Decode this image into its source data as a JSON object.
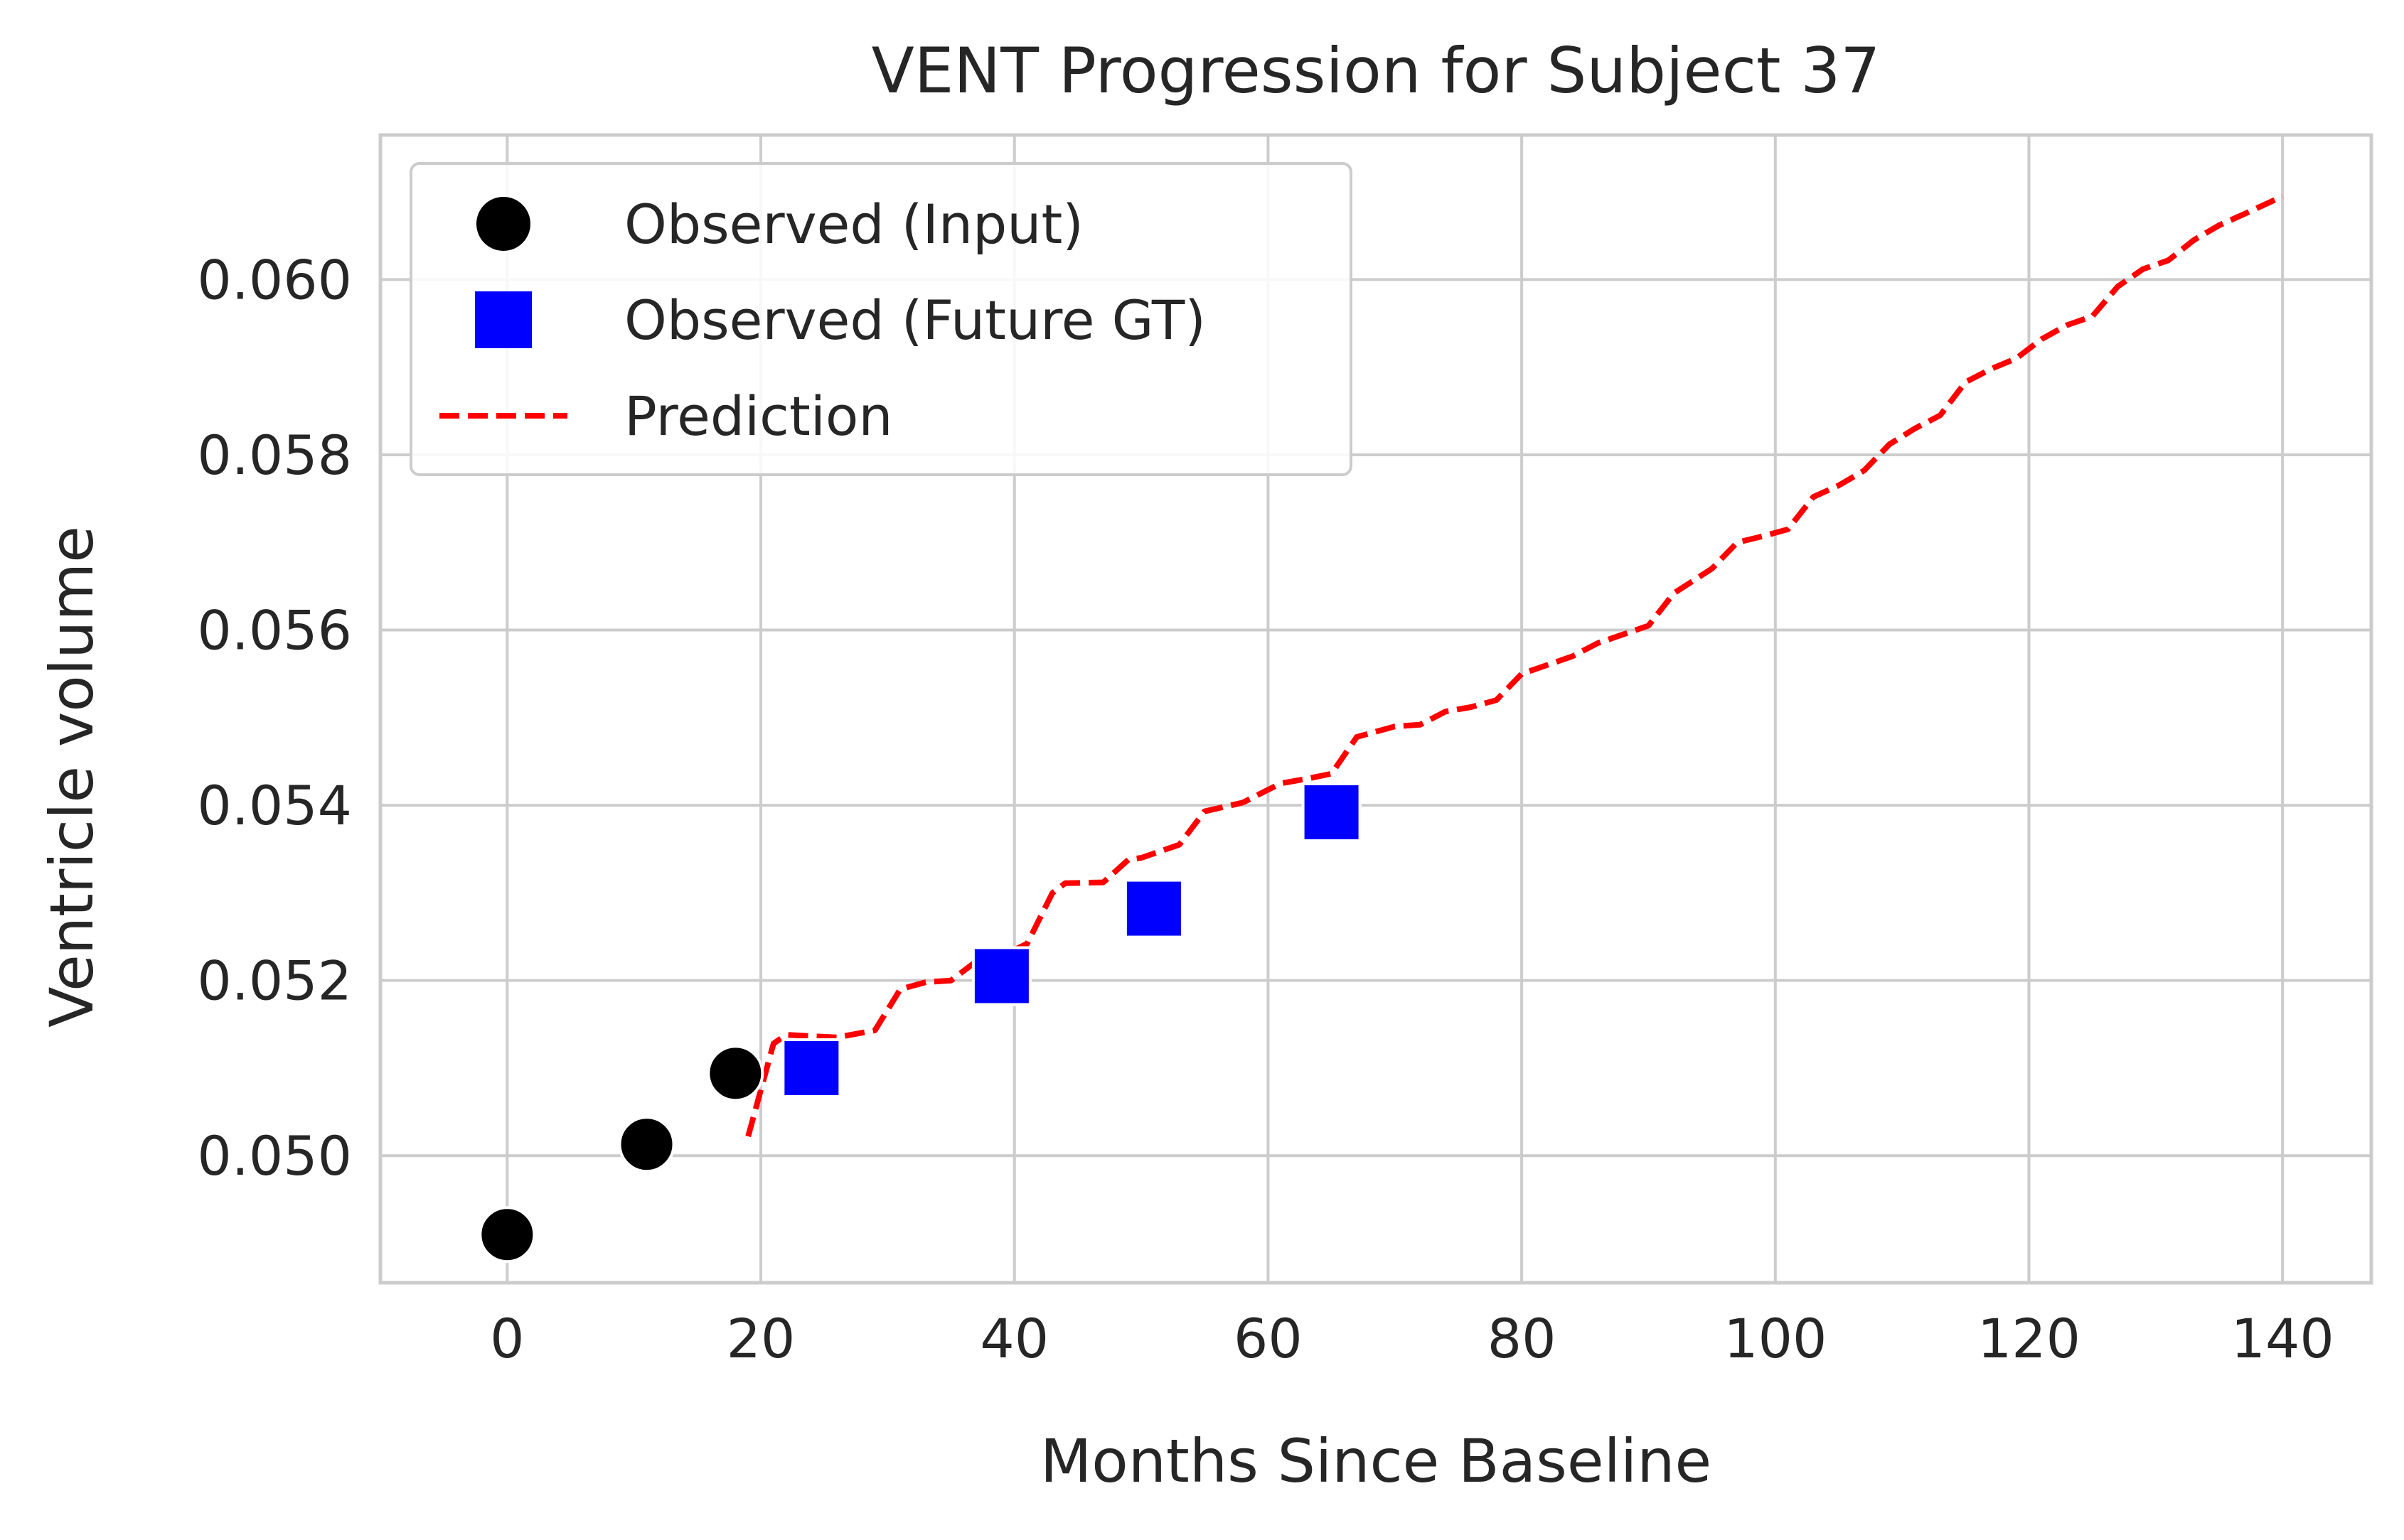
{
  "chart_data": {
    "type": "scatter",
    "title": "VENT Progression for Subject 37",
    "xlabel": "Months Since Baseline",
    "ylabel": "Ventricle volume",
    "xlim": [
      -10,
      147
    ],
    "ylim": [
      0.04855,
      0.06165
    ],
    "x_ticks": [
      0,
      20,
      40,
      60,
      80,
      100,
      120,
      140
    ],
    "y_ticks": [
      0.05,
      0.052,
      0.054,
      0.056,
      0.058,
      0.06
    ],
    "x_tick_labels": [
      "0",
      "20",
      "40",
      "60",
      "80",
      "100",
      "120",
      "140"
    ],
    "y_tick_labels": [
      "0.050",
      "0.052",
      "0.054",
      "0.056",
      "0.058",
      "0.060"
    ],
    "grid": true,
    "legend_position": "upper-left",
    "series": [
      {
        "name": "Observed (Input)",
        "kind": "scatter",
        "marker": "circle",
        "color": "#000000",
        "x": [
          0,
          11,
          18
        ],
        "y": [
          0.0491,
          0.05013,
          0.05094
        ]
      },
      {
        "name": "Observed (Future GT)",
        "kind": "scatter",
        "marker": "square",
        "color": "#0000ff",
        "x": [
          24,
          39,
          51,
          65
        ],
        "y": [
          0.051,
          0.05205,
          0.05282,
          0.05392
        ]
      },
      {
        "name": "Prediction",
        "kind": "line",
        "style": "dashed",
        "color": "#ff0000",
        "x": [
          19,
          21,
          22,
          26,
          29,
          31,
          33,
          35,
          37,
          39,
          41,
          43,
          44,
          47,
          49,
          50,
          53,
          55,
          58,
          61,
          63,
          65,
          67,
          70,
          72,
          74,
          76,
          78,
          80,
          82,
          84,
          86,
          90,
          92,
          95,
          97,
          99,
          101,
          103,
          105,
          107,
          109,
          111,
          113,
          115,
          117,
          119,
          121,
          123,
          125,
          127,
          129,
          131,
          133,
          135,
          137,
          140
        ],
        "y": [
          0.05022,
          0.05128,
          0.05138,
          0.05135,
          0.05143,
          0.0519,
          0.05198,
          0.052,
          0.05222,
          0.05228,
          0.05242,
          0.053,
          0.05311,
          0.05312,
          0.05338,
          0.0534,
          0.05355,
          0.05393,
          0.05403,
          0.05425,
          0.0543,
          0.05436,
          0.05478,
          0.0549,
          0.05492,
          0.05507,
          0.05512,
          0.0552,
          0.0555,
          0.0556,
          0.0557,
          0.05585,
          0.05605,
          0.05642,
          0.0567,
          0.057,
          0.05707,
          0.05715,
          0.05752,
          0.05765,
          0.05782,
          0.05812,
          0.0583,
          0.05845,
          0.05883,
          0.05898,
          0.0591,
          0.05932,
          0.05948,
          0.05958,
          0.05992,
          0.06012,
          0.06022,
          0.06045,
          0.06062,
          0.06075,
          0.06095
        ]
      }
    ]
  }
}
